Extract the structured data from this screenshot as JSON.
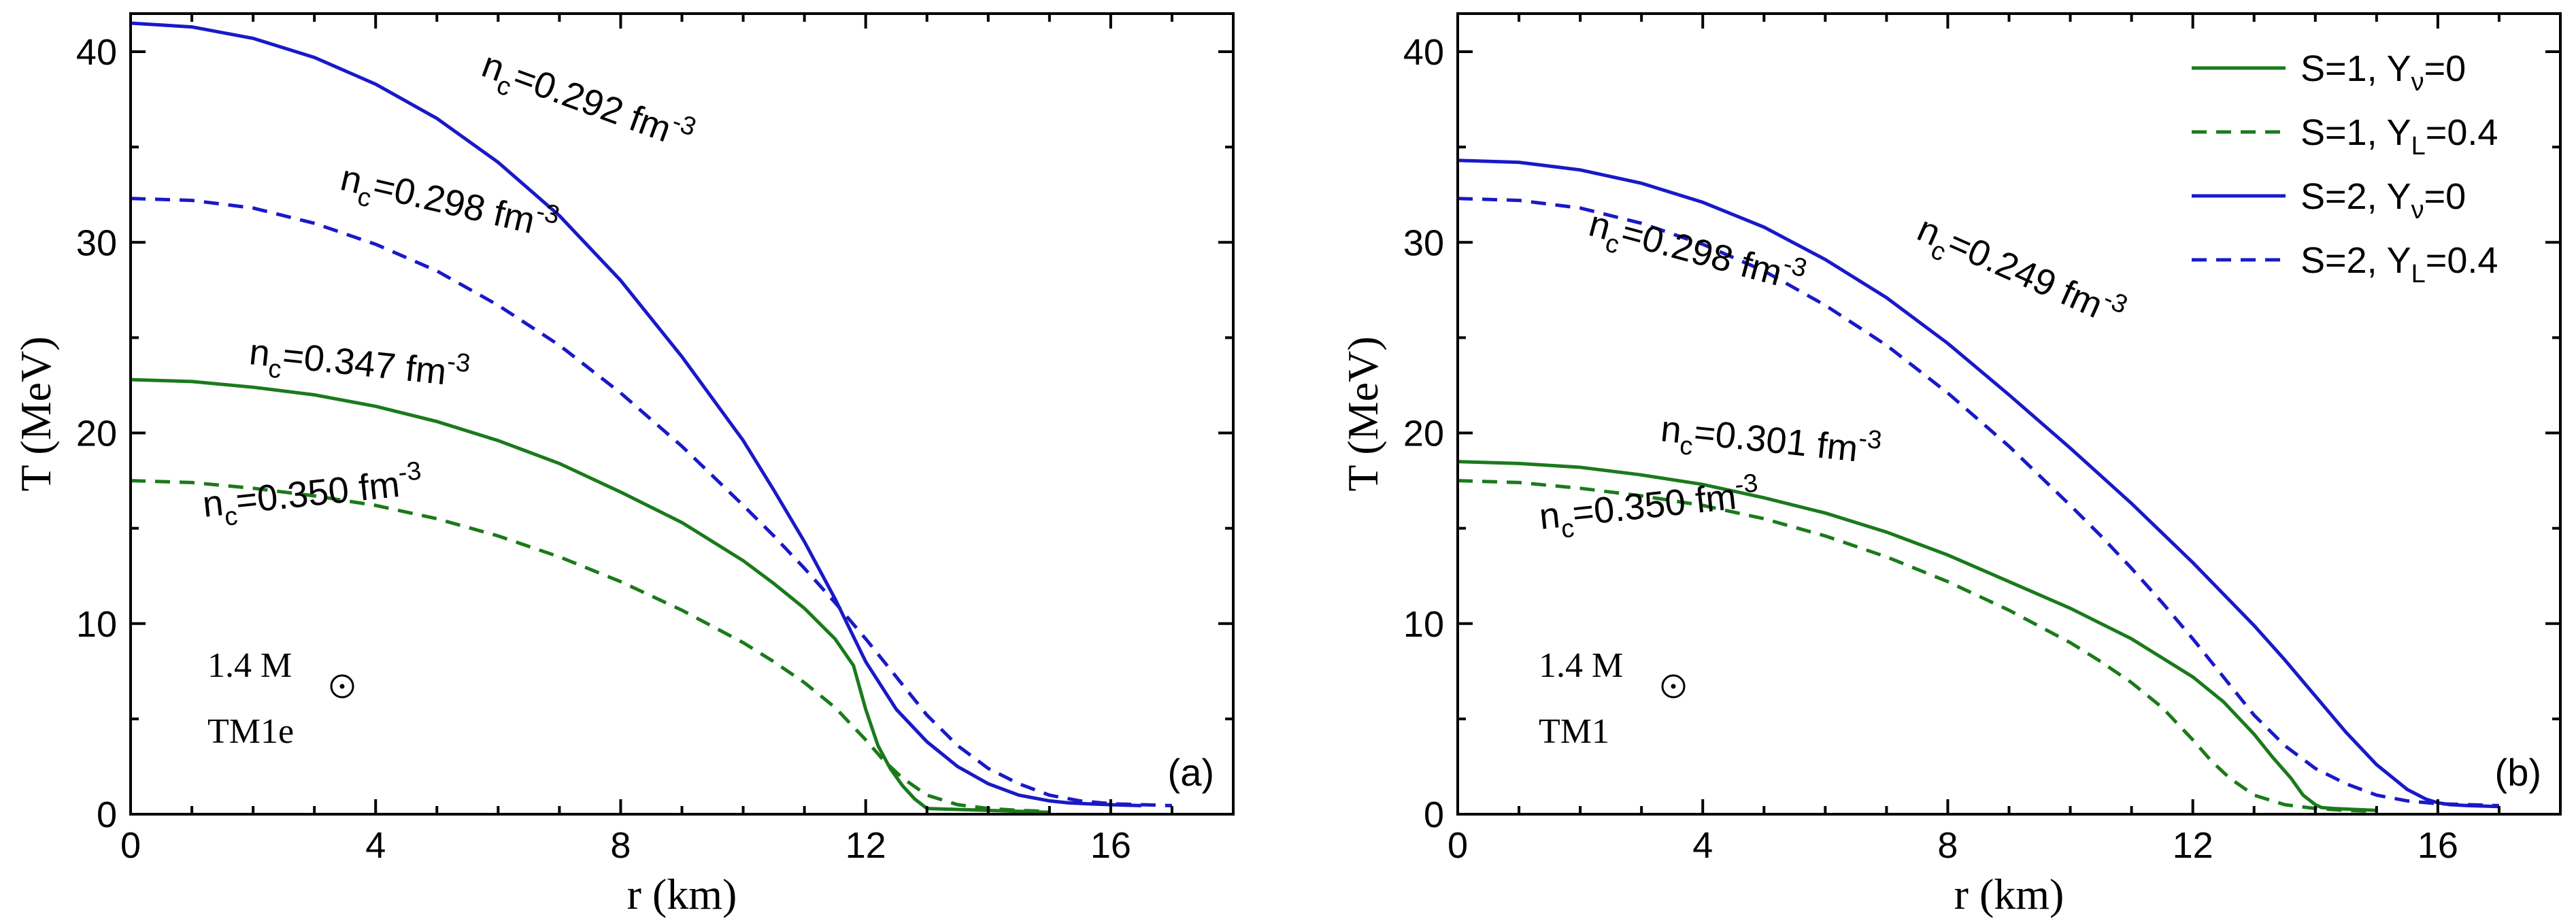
{
  "chart_data": [
    {
      "type": "line",
      "panel_label": "(a)",
      "xlabel": "r (km)",
      "ylabel": "T (MeV)",
      "xlim": [
        0,
        18
      ],
      "ylim": [
        0,
        42
      ],
      "xticks": [
        0,
        4,
        8,
        12,
        16
      ],
      "xtick_labels": [
        "0",
        "4",
        "8",
        "12",
        "16"
      ],
      "yticks": [
        0,
        10,
        20,
        30,
        40
      ],
      "ytick_labels": [
        "0",
        "10",
        "20",
        "30",
        "40"
      ],
      "grid": false,
      "annotations": {
        "mass": "1.4 M",
        "model": "TM1e"
      },
      "series": [
        {
          "key": "s1_ynu0",
          "color": "#1a7a1a",
          "dash": false,
          "x": [
            0,
            1,
            2,
            3,
            4,
            5,
            6,
            7,
            8,
            9,
            10,
            10.5,
            11,
            11.5,
            11.8,
            12.0,
            12.2,
            12.4,
            12.6,
            12.8,
            13.0,
            13.5,
            14.0,
            14.5,
            15.0
          ],
          "y": [
            22.8,
            22.7,
            22.4,
            22.0,
            21.4,
            20.6,
            19.6,
            18.4,
            16.9,
            15.3,
            13.3,
            12.1,
            10.8,
            9.2,
            7.8,
            5.5,
            3.6,
            2.4,
            1.5,
            0.8,
            0.3,
            0.25,
            0.2,
            0.15,
            0.1
          ],
          "label": "n_c=0.347 fm^-3"
        },
        {
          "key": "s1_yl04",
          "color": "#1a7a1a",
          "dash": true,
          "x": [
            0,
            1,
            2,
            3,
            4,
            5,
            6,
            7,
            8,
            9,
            10,
            10.5,
            11,
            11.5,
            12.0,
            12.3,
            12.6,
            13.0,
            13.5,
            14.0,
            14.5,
            15.0
          ],
          "y": [
            17.5,
            17.4,
            17.1,
            16.7,
            16.2,
            15.5,
            14.6,
            13.5,
            12.2,
            10.7,
            9.0,
            8.0,
            6.9,
            5.6,
            3.9,
            2.8,
            1.9,
            1.0,
            0.5,
            0.3,
            0.2,
            0.15
          ],
          "label": "n_c=0.350 fm^-3"
        },
        {
          "key": "s2_ynu0",
          "color": "#1919c8",
          "dash": false,
          "x": [
            0,
            1,
            2,
            3,
            4,
            5,
            6,
            7,
            8,
            9,
            10,
            10.5,
            11,
            11.5,
            12.0,
            12.5,
            13.0,
            13.5,
            14.0,
            14.5,
            15.0,
            15.3,
            15.6,
            16.0,
            16.5
          ],
          "y": [
            41.5,
            41.3,
            40.7,
            39.7,
            38.3,
            36.5,
            34.2,
            31.4,
            28.0,
            24.0,
            19.6,
            17.0,
            14.3,
            11.3,
            8.0,
            5.5,
            3.8,
            2.5,
            1.6,
            1.0,
            0.7,
            0.6,
            0.55,
            0.5,
            0.45
          ],
          "label": "n_c=0.292 fm^-3"
        },
        {
          "key": "s2_yl04",
          "color": "#1919c8",
          "dash": true,
          "x": [
            0,
            1,
            2,
            3,
            4,
            5,
            6,
            7,
            8,
            9,
            10,
            10.5,
            11,
            11.5,
            12.0,
            12.5,
            13.0,
            13.5,
            14.0,
            14.5,
            15.0,
            15.5,
            16.0,
            16.5,
            17.0
          ],
          "y": [
            32.3,
            32.2,
            31.8,
            31.0,
            29.9,
            28.5,
            26.7,
            24.6,
            22.1,
            19.3,
            16.2,
            14.6,
            12.9,
            11.1,
            9.2,
            7.2,
            5.2,
            3.6,
            2.4,
            1.6,
            1.0,
            0.7,
            0.55,
            0.5,
            0.45
          ],
          "label": "n_c=0.298 fm^-3"
        }
      ]
    },
    {
      "type": "line",
      "panel_label": "(b)",
      "xlabel": "r (km)",
      "ylabel": "T (MeV)",
      "xlim": [
        0,
        18
      ],
      "ylim": [
        0,
        42
      ],
      "xticks": [
        0,
        4,
        8,
        12,
        16
      ],
      "xtick_labels": [
        "0",
        "4",
        "8",
        "12",
        "16"
      ],
      "yticks": [
        0,
        10,
        20,
        30,
        40
      ],
      "ytick_labels": [
        "0",
        "10",
        "20",
        "30",
        "40"
      ],
      "grid": false,
      "legend_position": "top-right",
      "legend": [
        {
          "key": "s1_ynu0",
          "text": "S=1, Y",
          "sub": "ν",
          "tail": "=0"
        },
        {
          "key": "s1_yl04",
          "text": "S=1, Y",
          "sub": "L",
          "tail": "=0.4"
        },
        {
          "key": "s2_ynu0",
          "text": "S=2, Y",
          "sub": "ν",
          "tail": "=0"
        },
        {
          "key": "s2_yl04",
          "text": "S=2, Y",
          "sub": "L",
          "tail": "=0.4"
        }
      ],
      "annotations": {
        "mass": "1.4 M",
        "model": "TM1"
      },
      "series": [
        {
          "key": "s1_ynu0",
          "color": "#1a7a1a",
          "dash": false,
          "x": [
            0,
            1,
            2,
            3,
            4,
            5,
            6,
            7,
            8,
            9,
            10,
            11,
            12,
            12.5,
            13.0,
            13.3,
            13.6,
            13.8,
            14.0,
            14.1,
            14.3,
            15.0
          ],
          "y": [
            18.5,
            18.4,
            18.2,
            17.8,
            17.3,
            16.6,
            15.8,
            14.8,
            13.6,
            12.2,
            10.8,
            9.2,
            7.2,
            5.9,
            4.2,
            3.0,
            1.9,
            1.0,
            0.5,
            0.35,
            0.3,
            0.2
          ],
          "label": "n_c=0.301 fm^-3"
        },
        {
          "key": "s1_yl04",
          "color": "#1a7a1a",
          "dash": true,
          "x": [
            0,
            1,
            2,
            3,
            4,
            5,
            6,
            7,
            8,
            9,
            10,
            10.5,
            11,
            11.5,
            12.0,
            12.3,
            12.6,
            13.0,
            13.5,
            14.0,
            14.5,
            15.0
          ],
          "y": [
            17.5,
            17.4,
            17.1,
            16.7,
            16.2,
            15.5,
            14.6,
            13.5,
            12.2,
            10.7,
            9.0,
            8.0,
            6.9,
            5.6,
            3.9,
            2.8,
            1.9,
            1.0,
            0.5,
            0.3,
            0.2,
            0.15
          ],
          "label": "n_c=0.350 fm^-3"
        },
        {
          "key": "s2_ynu0",
          "color": "#1919c8",
          "dash": false,
          "x": [
            0,
            1,
            2,
            3,
            4,
            5,
            6,
            7,
            8,
            9,
            10,
            11,
            12,
            13,
            13.5,
            14.0,
            14.5,
            15.0,
            15.5,
            15.8,
            16.0,
            16.2,
            16.5,
            17.0
          ],
          "y": [
            34.3,
            34.2,
            33.8,
            33.1,
            32.1,
            30.8,
            29.1,
            27.1,
            24.7,
            22.0,
            19.2,
            16.3,
            13.2,
            9.9,
            8.1,
            6.2,
            4.3,
            2.6,
            1.3,
            0.8,
            0.6,
            0.5,
            0.45,
            0.4
          ],
          "label": "n_c=0.249 fm^-3"
        },
        {
          "key": "s2_yl04",
          "color": "#1919c8",
          "dash": true,
          "x": [
            0,
            1,
            2,
            3,
            4,
            5,
            6,
            7,
            8,
            9,
            10,
            10.5,
            11,
            11.5,
            12.0,
            12.5,
            13.0,
            13.5,
            14.0,
            14.5,
            15.0,
            15.5,
            16.0,
            16.5,
            17.0
          ],
          "y": [
            32.3,
            32.2,
            31.8,
            31.0,
            29.9,
            28.5,
            26.7,
            24.6,
            22.1,
            19.3,
            16.2,
            14.6,
            12.9,
            11.1,
            9.2,
            7.2,
            5.2,
            3.6,
            2.4,
            1.6,
            1.0,
            0.7,
            0.55,
            0.5,
            0.45
          ],
          "label": "n_c=0.298 fm^-3"
        }
      ]
    }
  ]
}
